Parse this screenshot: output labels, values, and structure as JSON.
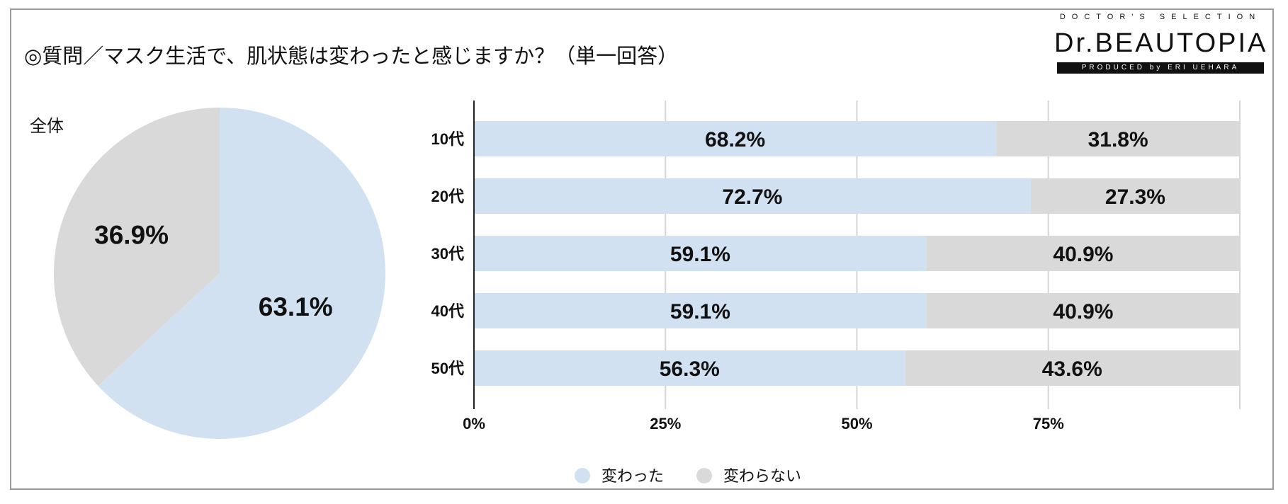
{
  "title": "◎質問／マスク生活で、肌状態は変わったと感じますか？（単一回答）",
  "logo": {
    "tagline": "DOCTOR'S SELECTION",
    "brand": "Dr.BEAUTOPIA",
    "sub": "PRODUCED by ERI UEHARA"
  },
  "colors": {
    "changed": "#d2e1f2",
    "unchanged": "#d9d9d9",
    "grid": "#d6d6d6",
    "axis": "#222222"
  },
  "chart_data": [
    {
      "type": "pie",
      "label": "全体",
      "slices": [
        {
          "name": "変わった",
          "value": 63.1,
          "label": "63.1%"
        },
        {
          "name": "変わらない",
          "value": 36.9,
          "label": "36.9%"
        }
      ]
    },
    {
      "type": "bar",
      "orientation": "horizontal",
      "stacked": true,
      "categories": [
        "10代",
        "20代",
        "30代",
        "40代",
        "50代"
      ],
      "series": [
        {
          "name": "変わった",
          "values": [
            68.2,
            72.7,
            59.1,
            59.1,
            56.3
          ],
          "labels": [
            "68.2%",
            "72.7%",
            "59.1%",
            "59.1%",
            "56.3%"
          ]
        },
        {
          "name": "変わらない",
          "values": [
            31.8,
            27.3,
            40.9,
            40.9,
            43.6
          ],
          "labels": [
            "31.8%",
            "27.3%",
            "40.9%",
            "40.9%",
            "43.6%"
          ]
        }
      ],
      "xlim": [
        0,
        100
      ],
      "ticks": [
        "0%",
        "25%",
        "50%",
        "75%"
      ],
      "grid": true,
      "legend": "bottom"
    }
  ]
}
